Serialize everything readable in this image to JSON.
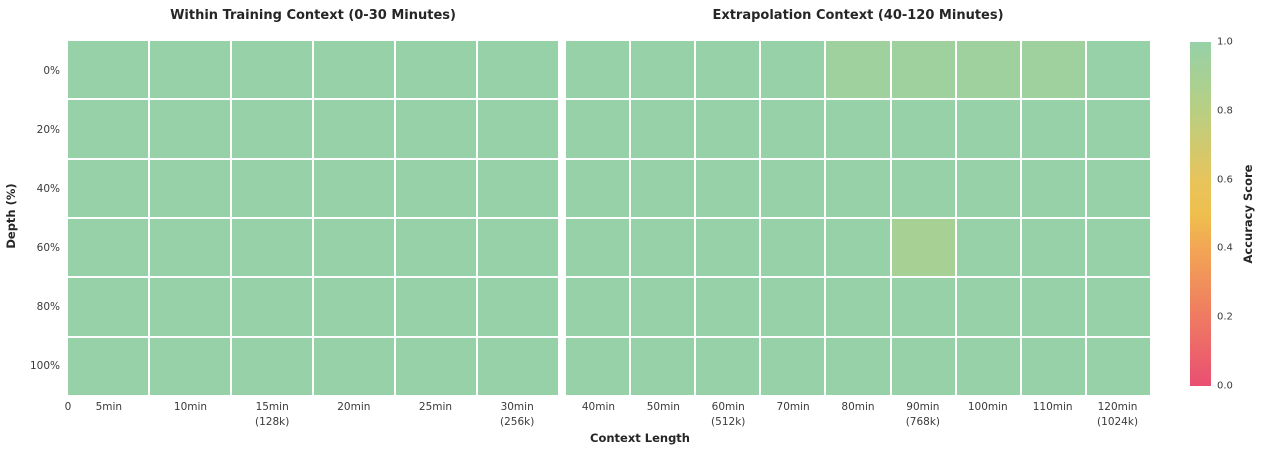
{
  "axes": {
    "xlabel": "Context Length",
    "ylabel": "Depth (%)"
  },
  "colorbar": {
    "label": "Accuracy Score",
    "ticks": [
      "1.0",
      "0.8",
      "0.6",
      "0.4",
      "0.2",
      "0.0"
    ],
    "stops": [
      {
        "v": 0.0,
        "c": "#e94f72"
      },
      {
        "v": 0.2,
        "c": "#ef7a62"
      },
      {
        "v": 0.4,
        "c": "#f2a654"
      },
      {
        "v": 0.5,
        "c": "#eebf4e"
      },
      {
        "v": 0.6,
        "c": "#e7c45c"
      },
      {
        "v": 0.8,
        "c": "#b8cf83"
      },
      {
        "v": 1.0,
        "c": "#96d1a7"
      }
    ]
  },
  "chart_data": [
    {
      "type": "heatmap",
      "title": "Within Training Context (0-30 Minutes)",
      "row_labels": [
        "0%",
        "20%",
        "40%",
        "60%",
        "80%",
        "100%"
      ],
      "col_labels": [
        "5min",
        "10min",
        "15min\n(128k)",
        "20min",
        "25min",
        "30min\n(256k)"
      ],
      "xticks": [
        {
          "label": "0",
          "u": 0
        },
        {
          "label": "5min",
          "u": 0.5
        },
        {
          "label": "10min",
          "u": 1.5
        },
        {
          "label": "15min\n(128k)",
          "u": 2.5
        },
        {
          "label": "20min",
          "u": 3.5
        },
        {
          "label": "25min",
          "u": 4.5
        },
        {
          "label": "30min\n(256k)",
          "u": 5.5
        }
      ],
      "values": [
        [
          1.0,
          1.0,
          1.0,
          1.0,
          1.0,
          1.0
        ],
        [
          1.0,
          1.0,
          1.0,
          1.0,
          1.0,
          1.0
        ],
        [
          1.0,
          1.0,
          1.0,
          1.0,
          1.0,
          1.0
        ],
        [
          1.0,
          1.0,
          1.0,
          1.0,
          1.0,
          1.0
        ],
        [
          1.0,
          1.0,
          1.0,
          1.0,
          1.0,
          1.0
        ],
        [
          1.0,
          1.0,
          1.0,
          1.0,
          1.0,
          1.0
        ]
      ],
      "vmin": 0.0,
      "vmax": 1.0
    },
    {
      "type": "heatmap",
      "title": "Extrapolation Context (40-120 Minutes)",
      "row_labels": [
        "0%",
        "20%",
        "40%",
        "60%",
        "80%",
        "100%"
      ],
      "col_labels": [
        "40min",
        "50min",
        "60min\n(512k)",
        "70min",
        "80min",
        "90min\n(768k)",
        "100min",
        "110min",
        "120min\n(1024k)"
      ],
      "xticks": [
        {
          "label": "40min",
          "u": 0.5
        },
        {
          "label": "50min",
          "u": 1.5
        },
        {
          "label": "60min\n(512k)",
          "u": 2.5
        },
        {
          "label": "70min",
          "u": 3.5
        },
        {
          "label": "80min",
          "u": 4.5
        },
        {
          "label": "90min\n(768k)",
          "u": 5.5
        },
        {
          "label": "100min",
          "u": 6.5
        },
        {
          "label": "110min",
          "u": 7.5
        },
        {
          "label": "120min\n(1024k)",
          "u": 8.5
        }
      ],
      "values": [
        [
          1.0,
          1.0,
          1.0,
          1.0,
          0.95,
          0.95,
          0.95,
          0.95,
          1.0
        ],
        [
          1.0,
          1.0,
          1.0,
          1.0,
          1.0,
          1.0,
          1.0,
          1.0,
          1.0
        ],
        [
          1.0,
          1.0,
          1.0,
          1.0,
          1.0,
          1.0,
          1.0,
          1.0,
          1.0
        ],
        [
          1.0,
          1.0,
          1.0,
          1.0,
          1.0,
          0.9,
          1.0,
          1.0,
          1.0
        ],
        [
          1.0,
          1.0,
          1.0,
          1.0,
          1.0,
          1.0,
          1.0,
          1.0,
          1.0
        ],
        [
          1.0,
          1.0,
          1.0,
          1.0,
          1.0,
          1.0,
          1.0,
          1.0,
          1.0
        ]
      ],
      "vmin": 0.0,
      "vmax": 1.0
    }
  ]
}
